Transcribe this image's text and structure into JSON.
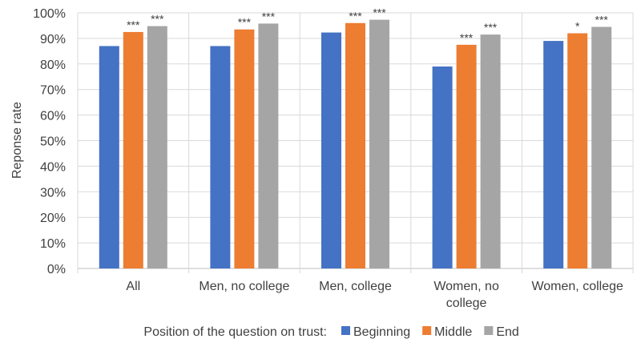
{
  "chart_data": {
    "type": "bar",
    "ylabel": "Reponse rate",
    "ylim": [
      0,
      100
    ],
    "y_ticks": [
      "0%",
      "10%",
      "20%",
      "30%",
      "40%",
      "50%",
      "60%",
      "70%",
      "80%",
      "90%",
      "100%"
    ],
    "categories": [
      [
        "All"
      ],
      [
        "Men, no college"
      ],
      [
        "Men, college"
      ],
      [
        "Women, no",
        "college"
      ],
      [
        "Women, college"
      ]
    ],
    "series": [
      {
        "name": "Beginning",
        "color": "#4472C4",
        "values": [
          87,
          87,
          92.3,
          79,
          89
        ]
      },
      {
        "name": "Middle",
        "color": "#ED7D31",
        "values": [
          92.5,
          93.5,
          96,
          87.5,
          92
        ]
      },
      {
        "name": "End",
        "color": "#A5A5A5",
        "values": [
          94.8,
          95.8,
          97.3,
          91.5,
          94.5
        ]
      }
    ],
    "significance": [
      [
        "",
        "***",
        "***"
      ],
      [
        "",
        "***",
        "***"
      ],
      [
        "",
        "***",
        "***"
      ],
      [
        "",
        "***",
        "***"
      ],
      [
        "",
        "*",
        "***"
      ]
    ],
    "legend": {
      "title": "Position of the question on trust:",
      "placement": "bottom"
    }
  }
}
